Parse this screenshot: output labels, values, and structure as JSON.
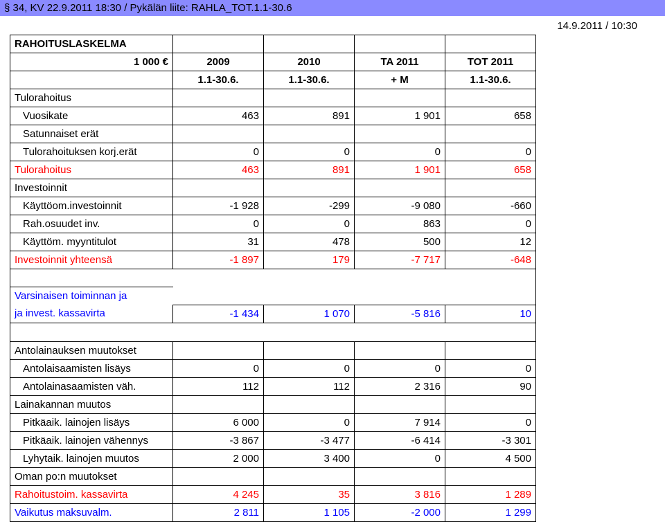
{
  "header": "§ 34, KV 22.9.2011 18:30 / Pykälän liite: RAHLA_TOT.1.1-30.6",
  "timestamp": "14.9.2011 / 10:30",
  "colors": {
    "header_bg": "#8a8aff",
    "text": "#000000",
    "red": "#ff0000",
    "blue": "#0000ff",
    "border": "#000000"
  },
  "table": {
    "title_row": {
      "label": "RAHOITUSLASKELMA",
      "bold": true
    },
    "head1": [
      "1 000 €",
      "2009",
      "2010",
      "TA 2011",
      "TOT 2011"
    ],
    "head2": [
      "",
      "1.1-30.6.",
      "1.1-30.6.",
      "+ M",
      "1.1-30.6."
    ],
    "rows": [
      {
        "label": "Tulorahoitus",
        "vals": [
          "",
          "",
          "",
          ""
        ],
        "color": "#000",
        "bold": false
      },
      {
        "label": "Vuosikate",
        "vals": [
          "463",
          "891",
          "1 901",
          "658"
        ],
        "color": "#000",
        "indent": 1
      },
      {
        "label": "Satunnaiset erät",
        "vals": [
          "",
          "",
          "",
          ""
        ],
        "color": "#000",
        "indent": 1
      },
      {
        "label": "Tulorahoituksen korj.erät",
        "vals": [
          "0",
          "0",
          "0",
          "0"
        ],
        "color": "#000",
        "indent": 1
      },
      {
        "label": "Tulorahoitus",
        "vals": [
          "463",
          "891",
          "1 901",
          "658"
        ],
        "color": "#ff0000"
      },
      {
        "label": "Investoinnit",
        "vals": [
          "",
          "",
          "",
          ""
        ],
        "color": "#000"
      },
      {
        "label": "Käyttöom.investoinnit",
        "vals": [
          "-1 928",
          "-299",
          "-9 080",
          "-660"
        ],
        "color": "#000",
        "indent": 1
      },
      {
        "label": "Rah.osuudet inv.",
        "vals": [
          "0",
          "0",
          "863",
          "0"
        ],
        "color": "#000",
        "indent": 1
      },
      {
        "label": "Käyttöm. myyntitulot",
        "vals": [
          "31",
          "478",
          "500",
          "12"
        ],
        "color": "#000",
        "indent": 1
      },
      {
        "label": "Investoinnit yhteensä",
        "vals": [
          "-1 897",
          "179",
          "-7 717",
          "-648"
        ],
        "color": "#ff0000"
      }
    ],
    "kassavirta1": {
      "label1": "Varsinaisen toiminnan ja",
      "label2": "ja invest. kassavirta",
      "vals": [
        "-1 434",
        "1 070",
        "-5 816",
        "10"
      ],
      "color": "#0000ff"
    },
    "rows2": [
      {
        "label": "Antolainauksen muutokset",
        "vals": [
          "",
          "",
          "",
          ""
        ],
        "color": "#000"
      },
      {
        "label": "Antolaisaamisten lisäys",
        "vals": [
          "0",
          "0",
          "0",
          "0"
        ],
        "color": "#000",
        "indent": 1
      },
      {
        "label": "Antolainasaamisten väh.",
        "vals": [
          "112",
          "112",
          "2 316",
          "90"
        ],
        "color": "#000",
        "indent": 1
      },
      {
        "label": "Lainakannan muutos",
        "vals": [
          "",
          "",
          "",
          ""
        ],
        "color": "#000"
      },
      {
        "label": "Pitkäaik. lainojen lisäys",
        "vals": [
          "6 000",
          "0",
          "7 914",
          "0"
        ],
        "color": "#000",
        "indent": 1
      },
      {
        "label": "Pitkäaik. lainojen vähennys",
        "vals": [
          "-3 867",
          "-3 477",
          "-6 414",
          "-3 301"
        ],
        "color": "#000",
        "indent": 1
      },
      {
        "label": "Lyhytaik. lainojen muutos",
        "vals": [
          "2 000",
          "3 400",
          "0",
          "4 500"
        ],
        "color": "#000",
        "indent": 1
      },
      {
        "label": "Oman po:n muutokset",
        "vals": [
          "",
          "",
          "",
          ""
        ],
        "color": "#000"
      },
      {
        "label": "Rahoitustoim. kassavirta",
        "vals": [
          "4 245",
          "35",
          "3 816",
          "1 289"
        ],
        "color": "#ff0000"
      },
      {
        "label": "Vaikutus maksuvalm.",
        "vals": [
          "2 811",
          "1 105",
          "-2 000",
          "1 299"
        ],
        "color": "#0000ff"
      }
    ]
  }
}
